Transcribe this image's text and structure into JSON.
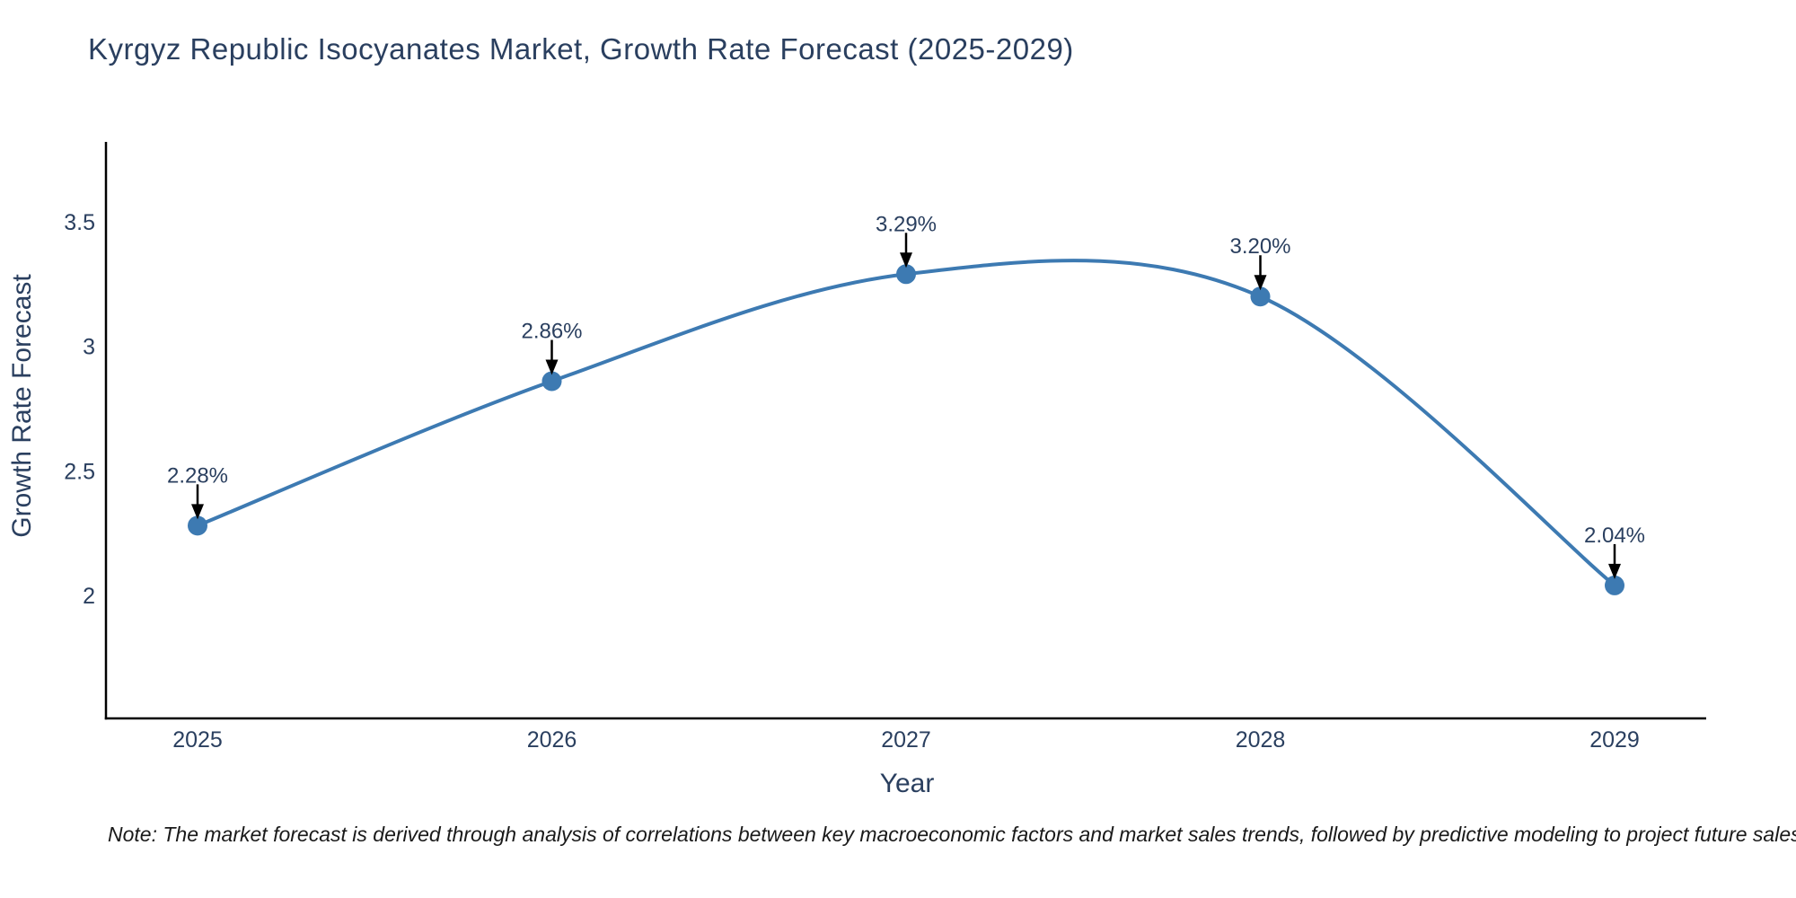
{
  "title": {
    "text": "Kyrgyz Republic Isocyanates Market, Growth Rate Forecast (2025-2029)",
    "color": "#2a3f5f"
  },
  "note": {
    "text": "Note: The market forecast is derived through analysis of correlations between key macroeconomic factors and market sales trends, followed by predictive modeling to project future sales"
  },
  "chart_data": {
    "type": "line",
    "title": "Kyrgyz Republic Isocyanates Market, Growth Rate Forecast (2025-2029)",
    "x": [
      2025,
      2026,
      2027,
      2028,
      2029
    ],
    "values": [
      2.28,
      2.86,
      3.29,
      3.2,
      2.04
    ],
    "point_labels": [
      "2.28%",
      "2.86%",
      "3.29%",
      "3.20%",
      "2.04%"
    ],
    "xtick_labels": [
      "2025",
      "2026",
      "2027",
      "2028",
      "2029"
    ],
    "yticks": [
      2,
      2.5,
      3,
      3.5
    ],
    "ytick_labels": [
      "2",
      "2.5",
      "3",
      "3.5"
    ],
    "xlabel": "Year",
    "ylabel": "Growth Rate Forecast",
    "ylim": [
      1.5,
      3.85
    ],
    "grid": false,
    "legend": false,
    "line_shape": "spline",
    "line_color": "#3d7ab2",
    "marker_color": "#3d7ab2",
    "axis_color": "#000000",
    "annotation_arrow_color": "#000000",
    "annotation_text_color": "#2a3f5f"
  }
}
